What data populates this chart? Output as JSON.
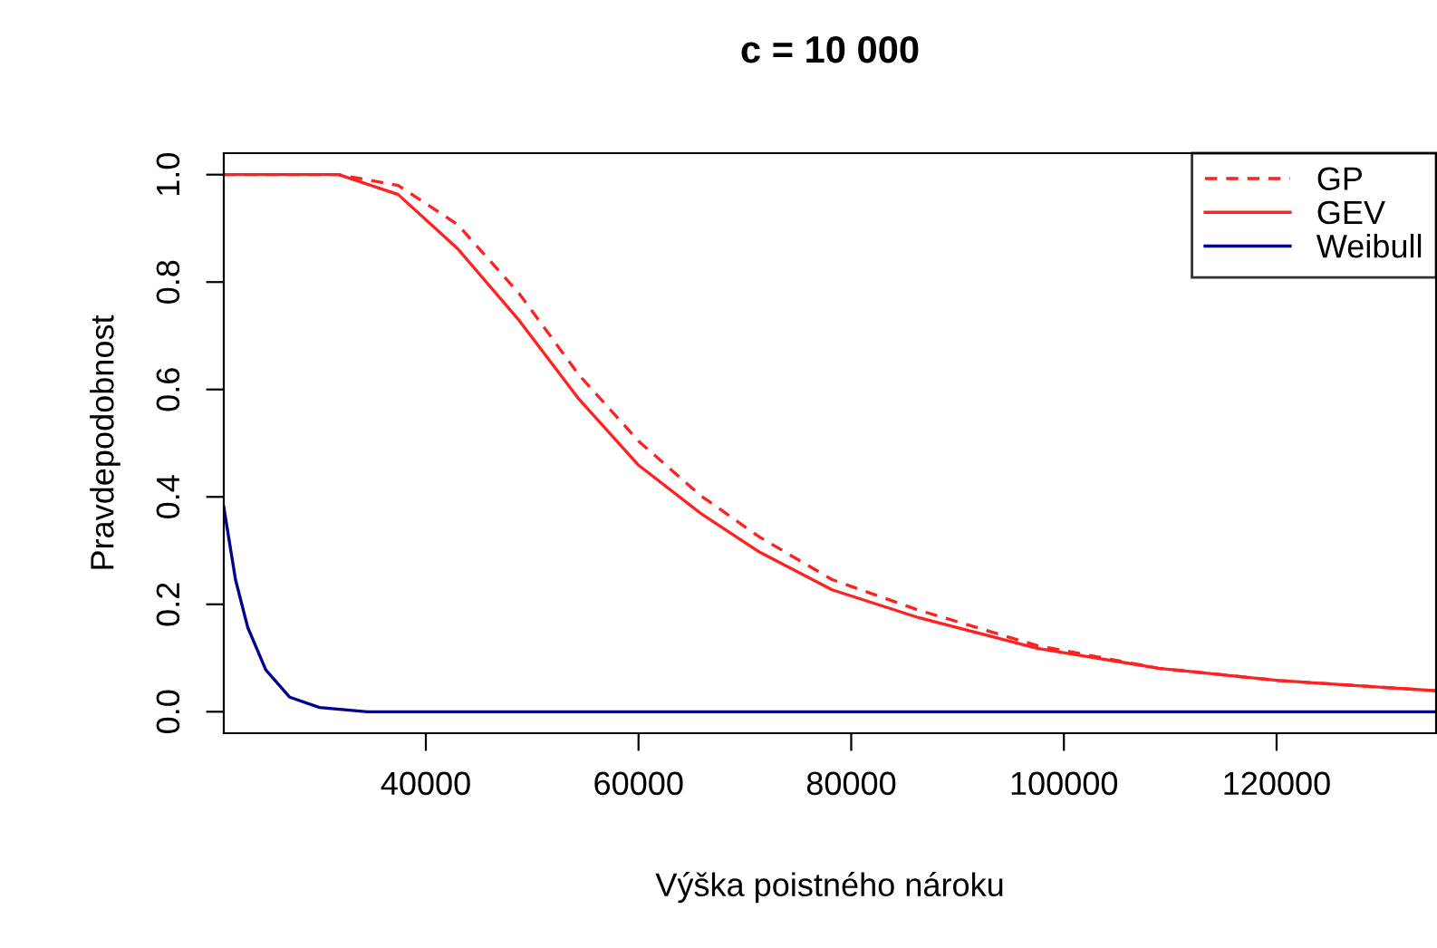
{
  "chart_data": {
    "type": "line",
    "title": "c = 10 000",
    "xlabel": "Výška poistného nároku",
    "ylabel": "Pravdepodobnost",
    "xlim": [
      21000,
      135000
    ],
    "xticks": [
      40000,
      60000,
      80000,
      100000,
      120000
    ],
    "ylim": [
      -0.04,
      1.04
    ],
    "yticks": [
      {
        "value": 0,
        "label": "0.0"
      },
      {
        "value": 0.2,
        "label": "0.2"
      },
      {
        "value": 0.4,
        "label": "0.4"
      },
      {
        "value": 0.6,
        "label": "0.6"
      },
      {
        "value": 0.8,
        "label": "0.8"
      },
      {
        "value": 1,
        "label": "1.0"
      }
    ],
    "grid": false,
    "legend": "top right",
    "series": [
      {
        "name": "GP",
        "color": "#ff2222",
        "line_style": "dashed",
        "x": [
          21000,
          31800,
          37400,
          43000,
          48800,
          54400,
          60000,
          65800,
          71400,
          78200,
          86200,
          97500,
          108900,
          120200,
          135000
        ],
        "values": [
          1.0,
          1.0,
          0.98,
          0.907,
          0.778,
          0.627,
          0.504,
          0.403,
          0.325,
          0.246,
          0.19,
          0.123,
          0.081,
          0.058,
          0.039
        ]
      },
      {
        "name": "GEV",
        "color": "#ff2222",
        "line_style": "solid",
        "x": [
          21000,
          31800,
          37400,
          43000,
          48800,
          54400,
          60000,
          65800,
          71400,
          78200,
          86200,
          97500,
          108900,
          120200,
          135000
        ],
        "values": [
          1.0,
          1.0,
          0.963,
          0.862,
          0.728,
          0.582,
          0.459,
          0.37,
          0.297,
          0.227,
          0.176,
          0.118,
          0.081,
          0.058,
          0.039
        ]
      },
      {
        "name": "Weibull",
        "color": "#00008b",
        "line_style": "solid",
        "x": [
          21000,
          22100,
          23250,
          24950,
          27200,
          30000,
          34500,
          135000
        ],
        "values": [
          0.381,
          0.246,
          0.157,
          0.078,
          0.027,
          0.008,
          0.0,
          0.0
        ]
      }
    ]
  }
}
